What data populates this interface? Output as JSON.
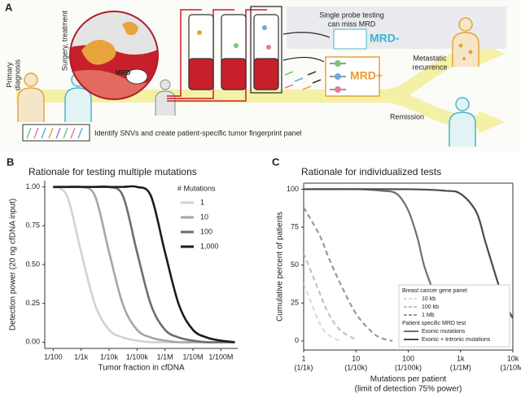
{
  "panel_labels": [
    "A",
    "B",
    "C"
  ],
  "diagram": {
    "primary_diagnosis": [
      "Primary",
      "diagnosis"
    ],
    "surgery": "Surgery, treatment",
    "mrd": "MRD",
    "single_probe": [
      "Single probe testing",
      "can miss MRD"
    ],
    "mrd_negative": "MRD-",
    "mrd_positive": "MRD+",
    "metastatic": [
      "Metastatic",
      "recurrence"
    ],
    "remission": "Remission",
    "fingerprint": "Identify SNVs and create patient-specific tumor fingerprint panel"
  },
  "chart_data": [
    {
      "type": "line",
      "title": "Rationale for testing multiple mutations",
      "x_label": "Tumor fraction in cfDNA",
      "y_label": "Detection power (20 ng cfDNA input)",
      "x_scale": "log",
      "x": [
        0.01,
        0.00316,
        0.001,
        0.000316,
        0.0001,
        3.16e-05,
        1e-05,
        3.16e-06,
        1e-06,
        3.16e-07,
        1e-07,
        3.16e-08,
        1e-08,
        3.16e-09
      ],
      "xlim": [
        0.02,
        2.5e-09
      ],
      "xticks": [
        {
          "value": 0.01,
          "label": "1/100"
        },
        {
          "value": 0.001,
          "label": "1/1k"
        },
        {
          "value": 0.0001,
          "label": "1/10k"
        },
        {
          "value": 1e-05,
          "label": "1/100k"
        },
        {
          "value": 1e-06,
          "label": "1/1M"
        },
        {
          "value": 1e-07,
          "label": "1/10M"
        },
        {
          "value": 1e-08,
          "label": "1/100M"
        }
      ],
      "ylim": [
        -0.04,
        1.04
      ],
      "yticks": [
        {
          "value": 0,
          "label": "0.00"
        },
        0.25,
        {
          "value": 0.5,
          "label": "0.50"
        },
        0.75,
        {
          "value": 1,
          "label": "1.00"
        }
      ],
      "box": false,
      "legend_title": "# Mutations",
      "legend": "upper right",
      "series": [
        {
          "name": "1",
          "color": "#d2d2d2",
          "values": [
            1.0,
            0.94,
            0.58,
            0.24,
            0.08,
            0.03,
            0.01,
            0,
            0,
            0,
            0,
            0,
            0,
            0
          ]
        },
        {
          "name": "10",
          "color": "#a6a6a6",
          "values": [
            1.0,
            1.0,
            1.0,
            0.94,
            0.58,
            0.24,
            0.08,
            0.03,
            0.01,
            0,
            0,
            0,
            0,
            0
          ]
        },
        {
          "name": "100",
          "color": "#6e6e6e",
          "values": [
            1.0,
            1.0,
            1.0,
            1.0,
            1.0,
            0.94,
            0.58,
            0.24,
            0.08,
            0.03,
            0.01,
            0,
            0,
            0
          ]
        },
        {
          "name": "1,000",
          "color": "#1c1c1c",
          "values": [
            1.0,
            1.0,
            1.0,
            1.0,
            1.0,
            1.0,
            1.0,
            0.94,
            0.58,
            0.24,
            0.08,
            0.03,
            0.01,
            0
          ]
        }
      ]
    },
    {
      "type": "line",
      "title": "Rationale for individualized tests",
      "x_label": [
        "Mutations per patient",
        "(limit of detection 75% power)"
      ],
      "y_label": "Cumulative percent of patients",
      "x_scale": "log",
      "xlim": [
        1,
        10000
      ],
      "xticks": [
        1,
        10,
        100,
        {
          "value": 1000,
          "label": "1k"
        },
        {
          "value": 10000,
          "label": "10k"
        }
      ],
      "xtick_sublabels": [
        "(1/1k)",
        "(1/10k)",
        "(1/100k)",
        "(1/1M)",
        "(1/10M)"
      ],
      "ylim": [
        -6,
        104
      ],
      "yticks": [
        0,
        25,
        50,
        75,
        100
      ],
      "box": true,
      "legend": "lower right",
      "legend_groups": [
        "Breast cancer gene panel",
        "Patient specific MRD test"
      ],
      "series": [
        {
          "name": "10 kb",
          "color": "#dcdcdc",
          "dash": true,
          "x": [
            1,
            2,
            3,
            5
          ],
          "values": [
            38,
            12,
            4,
            0
          ]
        },
        {
          "name": "100 kb",
          "color": "#c2c2c2",
          "dash": true,
          "x": [
            1,
            2,
            3,
            5,
            10
          ],
          "values": [
            58,
            32,
            18,
            7,
            1
          ]
        },
        {
          "name": "1 Mb",
          "color": "#999999",
          "dash": true,
          "x": [
            1,
            2,
            3,
            5,
            10,
            20,
            30,
            50
          ],
          "values": [
            88,
            70,
            55,
            38,
            18,
            6,
            2,
            0
          ]
        },
        {
          "name": "Exonic mutations",
          "color": "#707070",
          "dash": false,
          "x": [
            1,
            10,
            30,
            60,
            100,
            150,
            200,
            300,
            500,
            1000
          ],
          "values": [
            100,
            100,
            99,
            97,
            86,
            68,
            50,
            33,
            14,
            1
          ]
        },
        {
          "name": "Exonic + Intronic mutations",
          "color": "#4a4a4a",
          "dash": false,
          "x": [
            1,
            100,
            500,
            1000,
            2000,
            3000,
            5000,
            7000,
            10000
          ],
          "values": [
            100,
            100,
            99,
            97,
            85,
            65,
            40,
            25,
            15
          ]
        }
      ]
    }
  ]
}
